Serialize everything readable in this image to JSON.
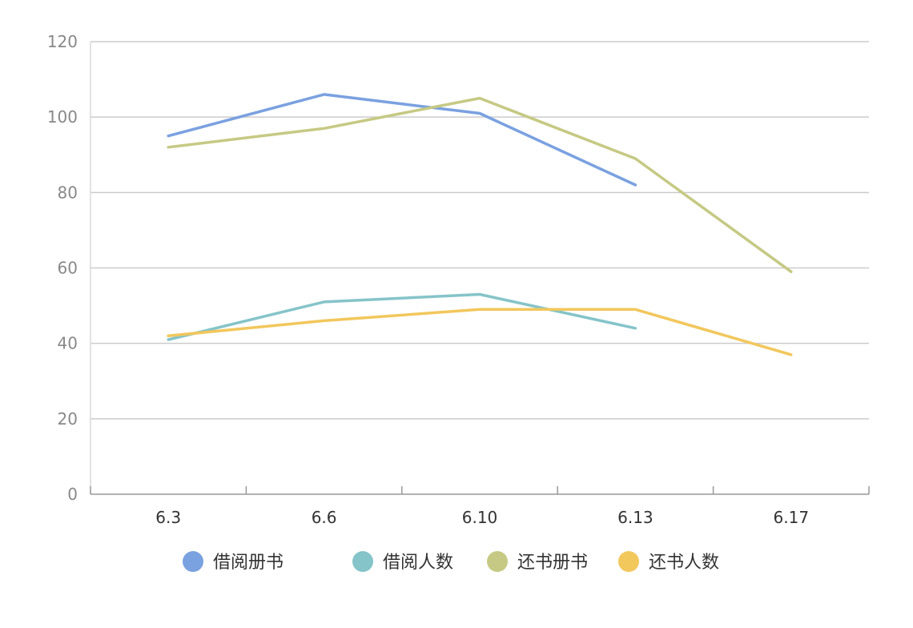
{
  "chart_data": {
    "type": "line",
    "title": "",
    "xlabel": "",
    "ylabel": "",
    "categories": [
      "6.3",
      "6.6",
      "6.10",
      "6.13",
      "6.17"
    ],
    "ylim": [
      0,
      120
    ],
    "yticks": [
      0,
      20,
      40,
      60,
      80,
      100,
      120
    ],
    "grid": true,
    "legend_position": "bottom",
    "series": [
      {
        "name": "借阅册书",
        "color": "#7aa1e0",
        "values": [
          95,
          106,
          101,
          82,
          null
        ]
      },
      {
        "name": "借阅人数",
        "color": "#85c4c9",
        "values": [
          41,
          51,
          53,
          44,
          null
        ]
      },
      {
        "name": "还书册书",
        "color": "#c6c983",
        "values": [
          92,
          97,
          105,
          89,
          59
        ]
      },
      {
        "name": "还书人数",
        "color": "#f2c75c",
        "values": [
          42,
          46,
          49,
          49,
          37
        ]
      }
    ]
  }
}
